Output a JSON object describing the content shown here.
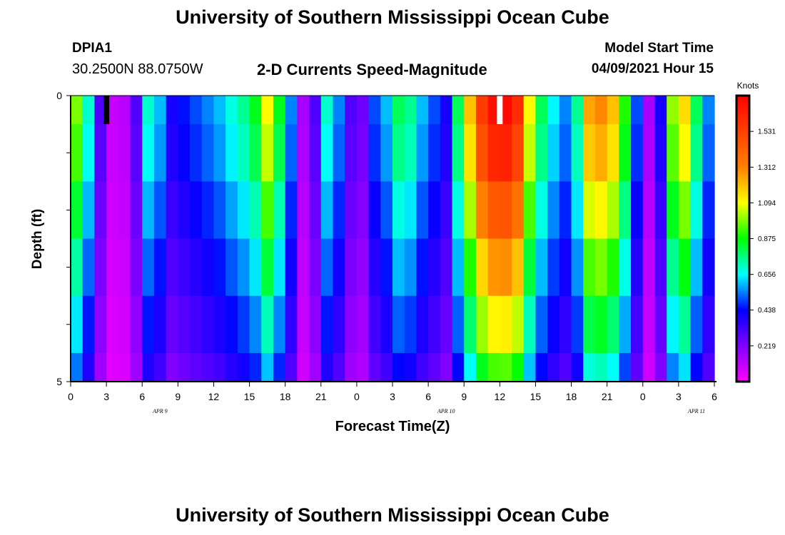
{
  "header": {
    "title": "University of Southern Mississippi Ocean Cube",
    "station_name": "DPIA1",
    "station_coords": "30.2500N  88.0750W",
    "model_start_label": "Model Start Time",
    "model_start_value": "04/09/2021 Hour 15"
  },
  "footer": {
    "title": "University of Southern Mississippi Ocean Cube"
  },
  "chart_data": {
    "type": "heatmap",
    "title": "2-D Currents Speed-Magnitude",
    "xlabel": "Forecast Time(Z)",
    "ylabel": "Depth (ft)",
    "x_tick_labels": [
      "0",
      "3",
      "6",
      "9",
      "12",
      "15",
      "18",
      "21",
      "0",
      "3",
      "6",
      "9",
      "12",
      "15",
      "18",
      "21",
      "0",
      "3",
      "6"
    ],
    "date_labels": [
      {
        "label": "APR  9",
        "tick_index": 2.5
      },
      {
        "label": "APR  10",
        "tick_index": 10.5
      },
      {
        "label": "APR  11",
        "tick_index": 17.5
      }
    ],
    "y_tick_labels": [
      "0",
      "5"
    ],
    "ylim": [
      0,
      5
    ],
    "x_hours": [
      0,
      54
    ],
    "colorbar": {
      "unit": "Knots",
      "ticks": [
        "0.219",
        "0.438",
        "0.656",
        "0.875",
        "1.094",
        "1.312",
        "1.531"
      ],
      "min": 0,
      "max": 1.75
    },
    "markers": [
      {
        "hour": 3,
        "color": "#000000"
      },
      {
        "hour": 36,
        "color": "#ffffff"
      }
    ],
    "depth_bin_edges": [
      0,
      0.5,
      1.5,
      2.5,
      3.5,
      4.5,
      5
    ],
    "hourly_speed": [
      0.98,
      0.7,
      0.3,
      0.1,
      0.12,
      0.3,
      0.7,
      0.6,
      0.4,
      0.45,
      0.5,
      0.55,
      0.6,
      0.68,
      0.75,
      0.85,
      1.1,
      0.85,
      0.55,
      0.15,
      0.3,
      0.7,
      0.55,
      0.3,
      0.25,
      0.5,
      0.6,
      0.8,
      0.75,
      0.6,
      0.5,
      0.4,
      0.8,
      1.2,
      1.55,
      1.7,
      1.72,
      1.6,
      1.1,
      0.8,
      0.65,
      0.55,
      0.75,
      1.25,
      1.3,
      1.2,
      0.9,
      0.5,
      0.15,
      0.4,
      1.0,
      1.15,
      0.8,
      0.55
    ],
    "depth_factor": [
      1.0,
      0.95,
      0.85,
      0.75,
      0.65,
      0.55
    ]
  }
}
